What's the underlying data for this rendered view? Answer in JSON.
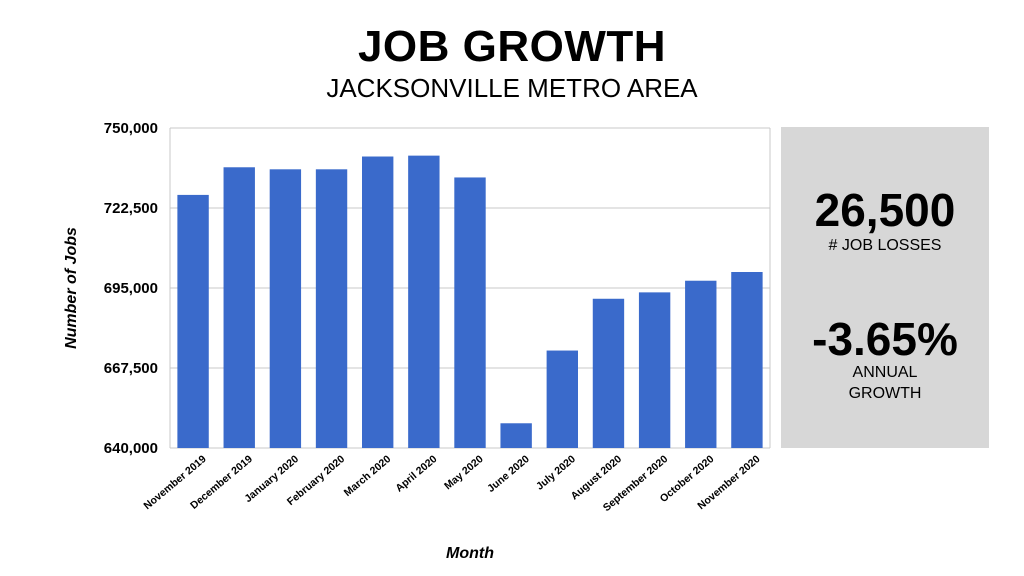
{
  "header": {
    "title": "JOB GROWTH",
    "subtitle": "JACKSONVILLE METRO AREA"
  },
  "panel": {
    "job_losses_value": "26,500",
    "job_losses_label": "# JOB LOSSES",
    "growth_value": "-3.65%",
    "growth_label_line1": "ANNUAL",
    "growth_label_line2": "GROWTH"
  },
  "colors": {
    "bar": "#3a6acb",
    "panel": "#d7d7d7",
    "grid": "#c8c8c8"
  },
  "chart_data": {
    "type": "bar",
    "title": "JOB GROWTH",
    "subtitle": "JACKSONVILLE METRO AREA",
    "xlabel": "Month",
    "ylabel": "Number of Jobs",
    "ylim": [
      640000,
      750000
    ],
    "yticks": [
      640000,
      667500,
      695000,
      722500,
      750000
    ],
    "ytick_labels": [
      "640,000",
      "667,500",
      "695,000",
      "722,500",
      "750,000"
    ],
    "grid": true,
    "categories": [
      "November 2019",
      "December 2019",
      "January 2020",
      "February 2020",
      "March 2020",
      "April 2020",
      "May 2020",
      "June 2020",
      "July 2020",
      "August 2020",
      "September 2020",
      "October 2020",
      "November 2020"
    ],
    "values": [
      727000,
      736500,
      735800,
      735800,
      740200,
      740500,
      733000,
      648500,
      673500,
      691300,
      693500,
      697500,
      700500
    ]
  }
}
